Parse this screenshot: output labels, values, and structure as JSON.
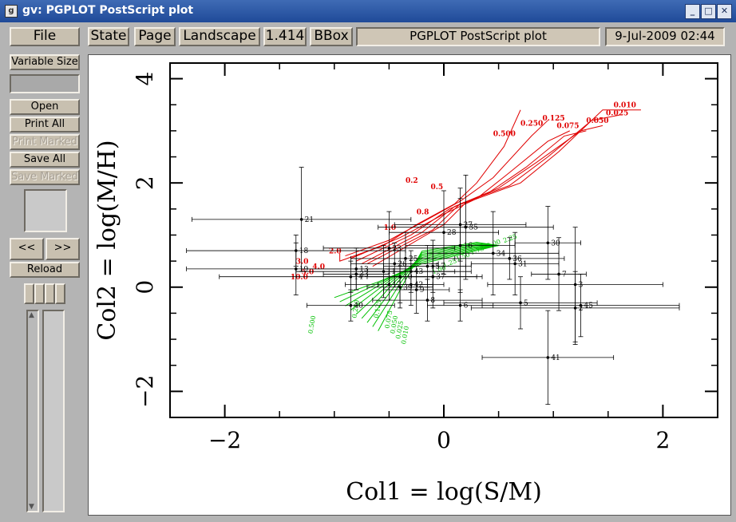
{
  "window": {
    "title": "gv: PGPLOT PostScript plot",
    "icon": "gv-app-icon"
  },
  "toolbar": {
    "file": "File",
    "state": "State",
    "page": "Page",
    "orientation": "Landscape",
    "zoom": "1.414",
    "bbox": "BBox",
    "document_title": "PGPLOT PostScript plot",
    "date": "9-Jul-2009 02:44"
  },
  "sidebar": {
    "variable_size": "Variable Size",
    "open": "Open",
    "print_all": "Print All",
    "print_marked": "Print Marked",
    "save_all": "Save All",
    "save_marked": "Save Marked",
    "prev": "<<",
    "next": ">>",
    "reload": "Reload"
  },
  "chart_data": {
    "type": "scatter",
    "xlabel": "Col1 = log(S/M)",
    "ylabel": "Col2 = log(M/H)",
    "xlim": [
      -2.5,
      2.5
    ],
    "ylim": [
      -2.5,
      4.3
    ],
    "x_ticks": [
      "−2",
      "0",
      "2"
    ],
    "y_ticks": [
      "−2",
      "0",
      "2",
      "4"
    ],
    "series": [
      {
        "color": "#000000",
        "kind": "data",
        "points": [
          {
            "label": "2",
            "x": 1.2,
            "y": -0.4,
            "ex": 0.95,
            "ey": 0.7
          },
          {
            "label": "3",
            "x": 1.2,
            "y": 0.05,
            "ex": 0.8,
            "ey": 1.1
          },
          {
            "label": "5",
            "x": 0.7,
            "y": -0.3,
            "ex": 0.7,
            "ey": 0.5
          },
          {
            "label": "6",
            "x": 0.15,
            "y": -0.35,
            "ex": 0.3,
            "ey": 0.3
          },
          {
            "label": "7",
            "x": 1.05,
            "y": 0.25,
            "ex": 0.25,
            "ey": 0.7
          },
          {
            "label": "8",
            "x": -0.15,
            "y": -0.25,
            "ex": 0.5,
            "ey": 0.4
          },
          {
            "label": "9",
            "x": -0.25,
            "y": -0.05,
            "ex": 0.3,
            "ey": 0.45
          },
          {
            "label": "10",
            "x": -0.4,
            "y": 0.2,
            "ex": 0.3,
            "ey": 0.5
          },
          {
            "label": "11",
            "x": -0.55,
            "y": 0.3,
            "ex": 0.8,
            "ey": 0.5
          },
          {
            "label": "12",
            "x": -0.5,
            "y": 0.05,
            "ex": 0.4,
            "ey": 0.3
          },
          {
            "label": "13",
            "x": -0.8,
            "y": 0.35,
            "ex": 0.5,
            "ey": 0.4
          },
          {
            "label": "14",
            "x": -0.85,
            "y": 0.2,
            "ex": 1.2,
            "ey": 0.3
          },
          {
            "label": "15",
            "x": -0.15,
            "y": 0.4,
            "ex": 0.4,
            "ey": 0.4
          },
          {
            "label": "16",
            "x": 0.15,
            "y": 0.8,
            "ex": 0.5,
            "ey": 0.9
          },
          {
            "label": "17",
            "x": -0.1,
            "y": 0.4,
            "ex": 0.3,
            "ey": 0.5
          },
          {
            "label": "18",
            "x": -1.35,
            "y": 0.7,
            "ex": 1.0,
            "ey": 0.3
          },
          {
            "label": "19",
            "x": -1.35,
            "y": 0.35,
            "ex": 1.0,
            "ey": 0.5
          },
          {
            "label": "21",
            "x": -1.3,
            "y": 1.3,
            "ex": 1.0,
            "ey": 1.0
          },
          {
            "label": "23",
            "x": -0.5,
            "y": 0.75,
            "ex": 0.6,
            "ey": 0.7
          },
          {
            "label": "25",
            "x": -0.35,
            "y": 0.55,
            "ex": 0.5,
            "ey": 0.5
          },
          {
            "label": "26",
            "x": -0.45,
            "y": 0.45,
            "ex": 0.4,
            "ey": 0.4
          },
          {
            "label": "27",
            "x": 0.15,
            "y": 1.2,
            "ex": 0.6,
            "ey": 0.7
          },
          {
            "label": "28",
            "x": 0.0,
            "y": 1.05,
            "ex": 0.5,
            "ey": 0.8
          },
          {
            "label": "30",
            "x": 0.95,
            "y": 0.85,
            "ex": 0.3,
            "ey": 0.7
          },
          {
            "label": "31",
            "x": 0.65,
            "y": 0.45,
            "ex": 0.4,
            "ey": 0.6
          },
          {
            "label": "33",
            "x": -0.8,
            "y": 0.25,
            "ex": 0.3,
            "ey": 0.3
          },
          {
            "label": "34",
            "x": 0.45,
            "y": 0.65,
            "ex": 0.6,
            "ey": 0.8
          },
          {
            "label": "35",
            "x": 0.2,
            "y": 1.15,
            "ex": 0.8,
            "ey": 1.0
          },
          {
            "label": "36",
            "x": 0.6,
            "y": 0.55,
            "ex": 0.5,
            "ey": 0.4
          },
          {
            "label": "37",
            "x": -0.1,
            "y": 0.2,
            "ex": 0.4,
            "ey": 0.6
          },
          {
            "label": "39",
            "x": -0.4,
            "y": 0.0,
            "ex": 0.3,
            "ey": 0.4
          },
          {
            "label": "40",
            "x": -0.85,
            "y": -0.35,
            "ex": 0.4,
            "ey": 0.3
          },
          {
            "label": "41",
            "x": 0.95,
            "y": -1.35,
            "ex": 0.6,
            "ey": 0.9
          },
          {
            "label": "42",
            "x": -0.3,
            "y": 0.05,
            "ex": 0.3,
            "ey": 0.4
          },
          {
            "label": "43",
            "x": -0.3,
            "y": 0.3,
            "ex": 0.4,
            "ey": 0.4
          },
          {
            "label": "45",
            "x": 1.25,
            "y": -0.35,
            "ex": 0.9,
            "ey": 0.6
          }
        ]
      }
    ],
    "red_tracks": {
      "color": "#e00000",
      "age_labels": [
        "0.2",
        "0.500",
        "0.250",
        "0.125",
        "0.075",
        "0.050",
        "0.025",
        "0.010",
        "0.5",
        "0.8",
        "1.0",
        "2.0",
        "3.0",
        "4.0",
        "5.0",
        "10.0"
      ]
    },
    "green_tracks": {
      "color": "#00c000",
      "labels": [
        "2.25",
        "2.00",
        "1.75",
        "1.50",
        "1.25",
        "1.00",
        "0.500",
        "0.250",
        "0.125",
        "0.075",
        "0.050",
        "0.025",
        "0.010"
      ]
    },
    "grid": false
  }
}
